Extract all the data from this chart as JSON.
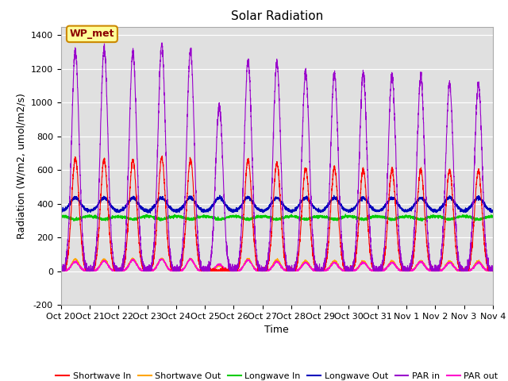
{
  "title": "Solar Radiation",
  "ylabel": "Radiation (W/m2, umol/m2/s)",
  "xlabel": "Time",
  "ylim": [
    -200,
    1450
  ],
  "yticks": [
    -200,
    0,
    200,
    400,
    600,
    800,
    1000,
    1200,
    1400
  ],
  "xtick_labels": [
    "Oct 20",
    "Oct 21",
    "Oct 22",
    "Oct 23",
    "Oct 24",
    "Oct 25",
    "Oct 26",
    "Oct 27",
    "Oct 28",
    "Oct 29",
    "Oct 30",
    "Oct 31",
    "Nov 1",
    "Nov 2",
    "Nov 3",
    "Nov 4"
  ],
  "colors": {
    "shortwave_in": "#ff0000",
    "shortwave_out": "#ffa500",
    "longwave_in": "#00cc00",
    "longwave_out": "#0000bb",
    "par_in": "#9900cc",
    "par_out": "#ff00cc"
  },
  "background_color": "#e0e0e0",
  "label_box_color": "#ffff99",
  "label_box_edge": "#cc8800",
  "label_text": "WP_met",
  "n_days": 15,
  "pts_per_day": 288,
  "shortwave_in_peaks": [
    670,
    660,
    660,
    670,
    660,
    0,
    660,
    640,
    610,
    610,
    605,
    600,
    600,
    600,
    595
  ],
  "par_in_peaks": [
    1310,
    1320,
    1300,
    1340,
    1310,
    980,
    1250,
    1240,
    1180,
    1175,
    1170,
    1160,
    1150,
    1110,
    1110
  ],
  "par_out_peaks": [
    55,
    60,
    65,
    70,
    70,
    40,
    65,
    55,
    50,
    50,
    50,
    50,
    55,
    50,
    50
  ],
  "shortwave_out_peaks": [
    70,
    70,
    72,
    75,
    72,
    35,
    72,
    68,
    60,
    60,
    58,
    58,
    60,
    58,
    58
  ],
  "longwave_in_base": 325,
  "longwave_out_base": 355,
  "longwave_out_peak_bump": 80,
  "title_fontsize": 11,
  "axis_label_fontsize": 9,
  "tick_fontsize": 8,
  "legend_fontsize": 8
}
